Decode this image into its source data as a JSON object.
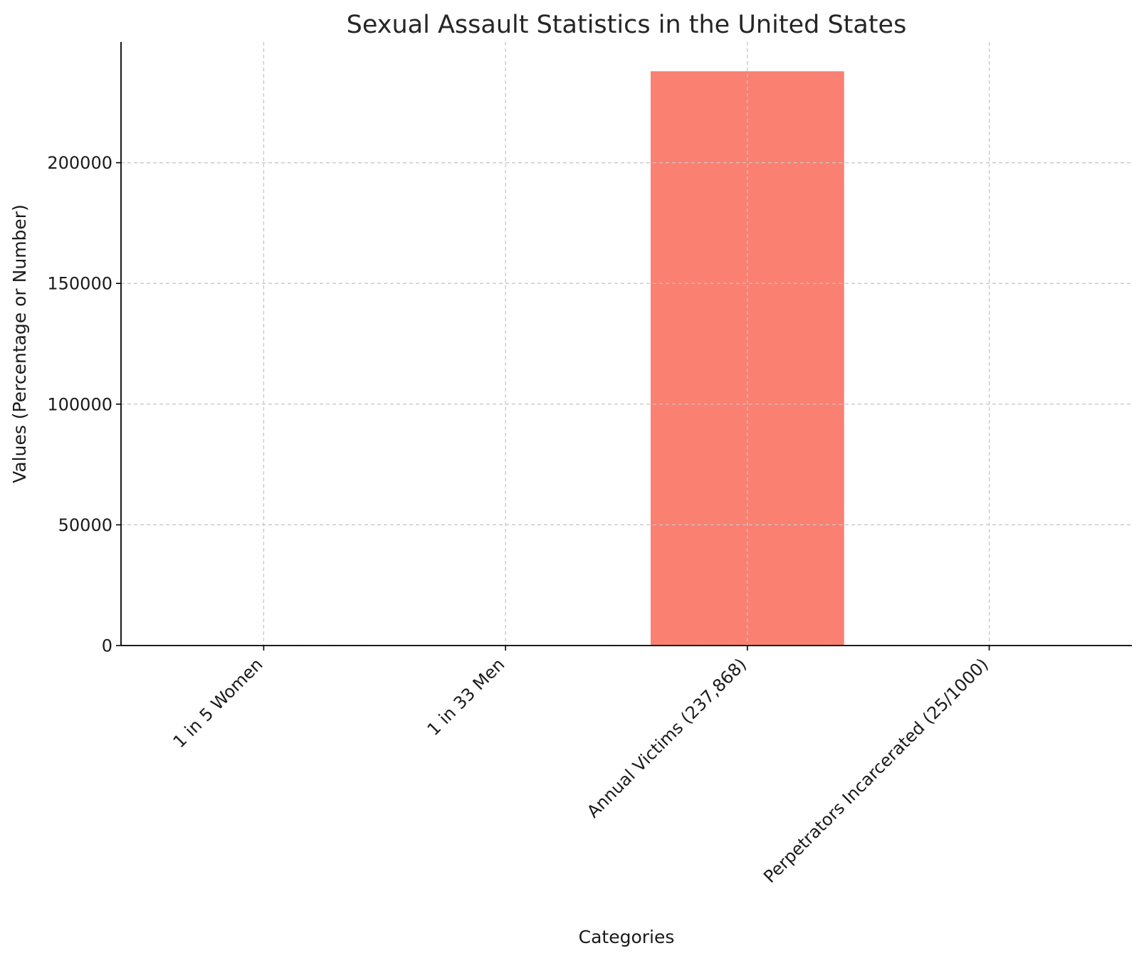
{
  "chart_data": {
    "type": "bar",
    "title": "Sexual Assault Statistics in the United States",
    "xlabel": "Categories",
    "ylabel": "Values (Percentage or Number)",
    "categories": [
      "1 in 5 Women",
      "1 in 33 Men",
      "Annual Victims (237,868)",
      "Perpetrators Incarcerated (25/1000)"
    ],
    "values": [
      20,
      3,
      237868,
      2.5
    ],
    "ylim": [
      0,
      250000
    ],
    "yticks": [
      0,
      50000,
      100000,
      150000,
      200000
    ],
    "ytick_labels": [
      "0",
      "50000",
      "100000",
      "150000",
      "200000"
    ],
    "bar_color": "#fa8072",
    "grid": true
  }
}
